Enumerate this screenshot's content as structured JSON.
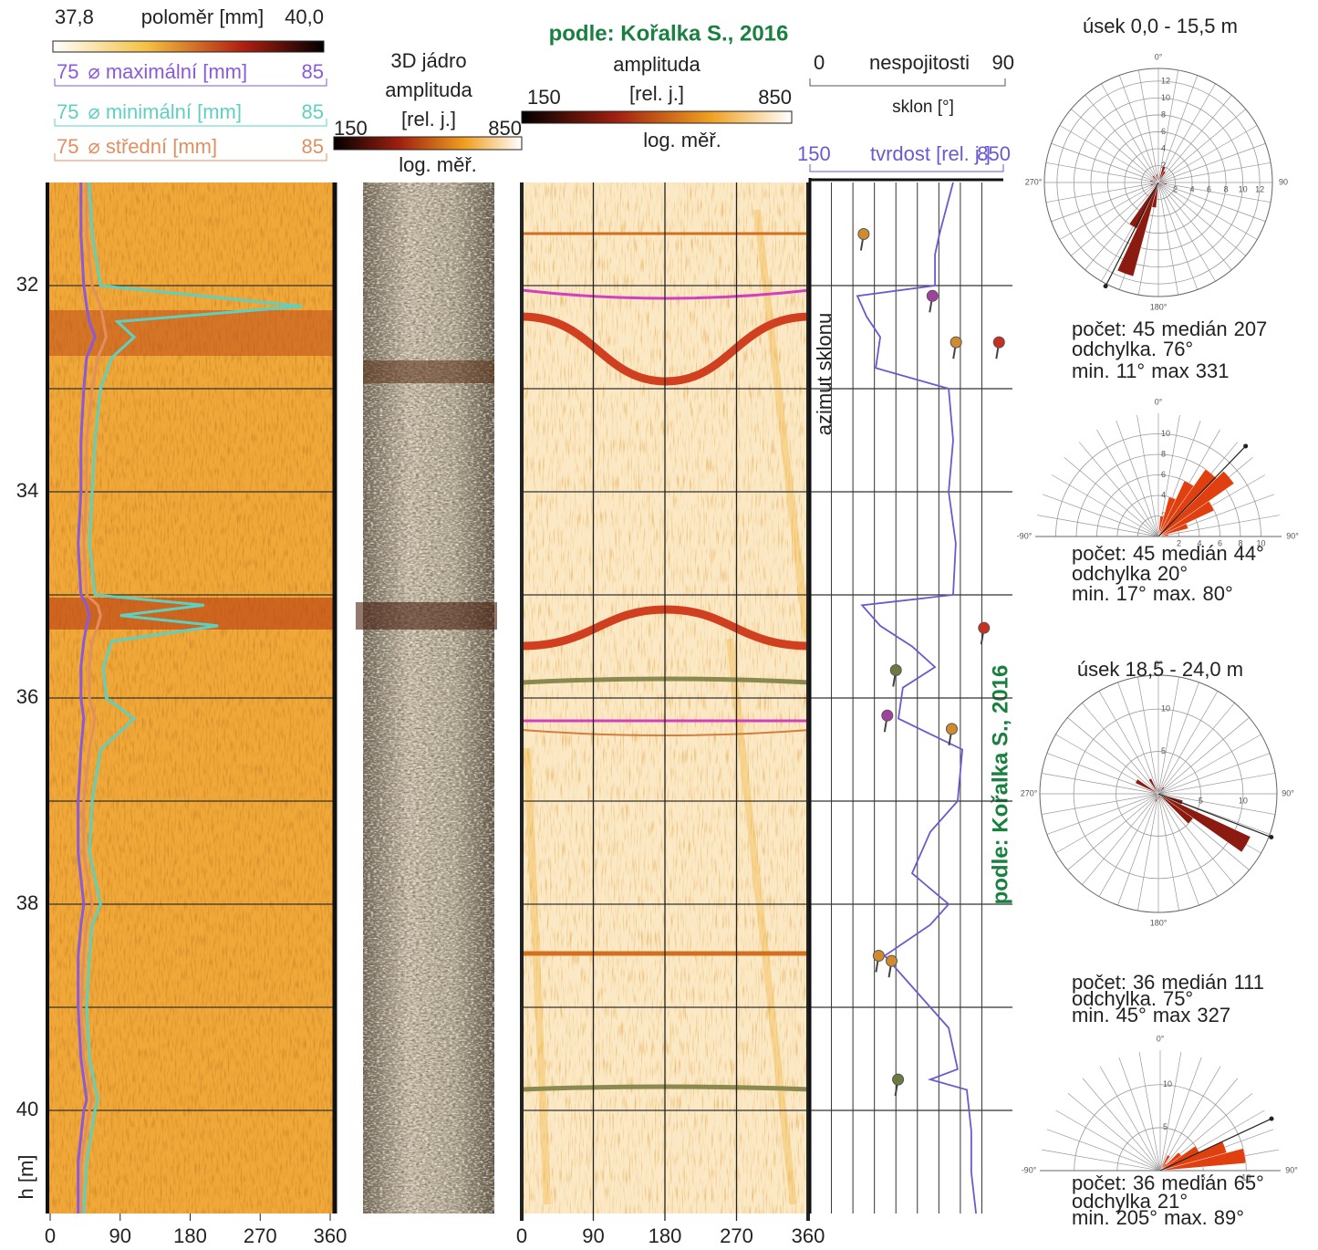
{
  "source": "podle: Kořalka S., 2016",
  "depth_axis": {
    "label": "h [m]",
    "lim": [
      31,
      41
    ],
    "ticks": [
      32,
      34,
      36,
      38,
      40
    ],
    "grid": [
      32,
      33,
      34,
      35,
      36,
      37,
      38,
      39,
      40
    ]
  },
  "radius_log": {
    "scale_min": {
      "value": 37.8,
      "label": "37,8"
    },
    "scale_title": "poloměr [mm]",
    "scale_max": {
      "value": 40.0,
      "label": "40,0"
    },
    "xlim": [
      0,
      360
    ],
    "xticks": [
      0,
      90,
      180,
      270,
      360
    ],
    "caliper_lim": [
      75,
      85
    ],
    "caliper_depths": [
      31.0,
      31.5,
      32.0,
      32.2,
      32.35,
      32.5,
      32.7,
      33.0,
      33.5,
      34.0,
      34.5,
      35.0,
      35.1,
      35.2,
      35.3,
      35.45,
      35.7,
      36.0,
      36.2,
      36.5,
      37.0,
      37.5,
      38.0,
      38.2,
      38.5,
      39.0,
      39.5,
      39.9,
      40.0,
      40.5,
      41.0
    ],
    "series": [
      {
        "name": "⌀ maximální [mm]",
        "color": "#8a5ad8",
        "values": [
          76.1,
          76.1,
          76.2,
          76.3,
          76.4,
          76.6,
          76.3,
          76.2,
          76.1,
          76.1,
          76.0,
          76.1,
          76.3,
          76.4,
          76.3,
          76.2,
          76.1,
          76.1,
          76.2,
          76.1,
          76.0,
          76.0,
          76.2,
          76.1,
          76.0,
          76.0,
          76.1,
          76.3,
          76.2,
          76.0,
          76.0
        ]
      },
      {
        "name": "⌀ minimální [mm]",
        "color": "#5fd0c0",
        "values": [
          76.4,
          76.5,
          76.8,
          84.0,
          77.4,
          78.0,
          77.2,
          76.8,
          76.6,
          76.5,
          76.4,
          76.6,
          80.5,
          77.5,
          81.0,
          77.2,
          76.9,
          77.0,
          78.0,
          76.8,
          76.5,
          76.4,
          76.8,
          76.5,
          76.4,
          76.3,
          76.4,
          76.7,
          76.6,
          76.3,
          76.2
        ]
      },
      {
        "name": "⌀ střední [mm]",
        "color": "#e09060",
        "values": [
          76.3,
          76.3,
          76.5,
          76.8,
          76.9,
          77.0,
          76.7,
          76.5,
          76.3,
          76.3,
          76.2,
          76.3,
          76.7,
          76.8,
          76.7,
          76.5,
          76.4,
          76.4,
          76.6,
          76.4,
          76.2,
          76.2,
          76.5,
          76.3,
          76.2,
          76.1,
          76.2,
          76.5,
          76.4,
          76.1,
          76.1
        ]
      }
    ]
  },
  "core_3d": {
    "title": "3D jádro",
    "subtitle": "amplituda",
    "unit": "[rel. j.]",
    "lim": [
      150,
      850
    ],
    "note": "log. měř."
  },
  "amplitude_log": {
    "title": "amplituda",
    "unit": "[rel. j.]",
    "lim": [
      150,
      850
    ],
    "note": "log. měř.",
    "xlim": [
      0,
      360
    ],
    "xticks": [
      0,
      90,
      180,
      270,
      360
    ]
  },
  "discontinuities": {
    "title": "nespojitosti",
    "unit": "sklon [°]",
    "azimuth_label": "azimut sklonu",
    "lim": [
      0,
      90
    ],
    "grid": [
      10,
      20,
      30,
      40,
      50,
      60,
      70,
      80
    ],
    "depths": [
      31.5,
      32.1,
      32.55,
      32.55,
      35.32,
      35.73,
      36.17,
      36.3,
      38.5,
      38.55,
      39.7
    ],
    "dips": [
      25,
      57,
      68,
      88,
      81,
      40,
      36,
      66,
      32,
      38,
      41
    ],
    "colors": [
      "#d08a30",
      "#a040a0",
      "#d08a30",
      "#c83020",
      "#c83020",
      "#6a7a40",
      "#a040a0",
      "#d08a30",
      "#d08a30",
      "#d08a30",
      "#6a7a40"
    ]
  },
  "hardness": {
    "title": "tvrdost [rel. j.]",
    "lim": [
      150,
      850
    ],
    "color": "#6a5ad0",
    "depths": [
      31.0,
      31.5,
      31.7,
      32.0,
      32.1,
      32.3,
      32.5,
      32.8,
      33.0,
      33.5,
      34.0,
      34.5,
      35.0,
      35.1,
      35.3,
      35.5,
      35.7,
      35.9,
      36.2,
      36.5,
      37.0,
      37.3,
      37.7,
      38.0,
      38.2,
      38.5,
      38.8,
      39.2,
      39.6,
      39.7,
      39.8,
      40.2,
      40.6,
      41.0
    ],
    "values": [
      694,
      642,
      625,
      625,
      330,
      365,
      417,
      400,
      677,
      694,
      677,
      704,
      694,
      348,
      417,
      538,
      625,
      503,
      486,
      729,
      711,
      607,
      538,
      677,
      607,
      434,
      538,
      677,
      711,
      607,
      746,
      763,
      763,
      781
    ]
  },
  "roses": [
    {
      "title": "úsek 0,0 - 15,5 m",
      "half": false,
      "color": "#8b1a10",
      "rlim": [
        0,
        13.5
      ],
      "rticks": [
        2,
        4,
        6,
        8,
        10,
        12
      ],
      "angle_labels": [
        {
          "value": 0,
          "label": "0°"
        },
        {
          "value": 90,
          "label": "90"
        },
        {
          "value": 180,
          "label": "180°"
        },
        {
          "value": 270,
          "label": "270°"
        }
      ],
      "angles": [
        200,
        210,
        190,
        20,
        30,
        100,
        250,
        280,
        320,
        350
      ],
      "counts": [
        11.5,
        6,
        3,
        2,
        1.5,
        1,
        1,
        1,
        1,
        1
      ],
      "stats": {
        "count_label": "počet:",
        "count": 45,
        "median_label": "medián",
        "median": 207,
        "dev_label": "odchylka.",
        "dev": {
          "value": 76,
          "label": "76°"
        },
        "min_label": "min.",
        "min": {
          "value": 11,
          "label": "11°"
        },
        "max_label": "max",
        "max": 331
      }
    },
    {
      "half": true,
      "color": "#e04010",
      "rlim": [
        0,
        12
      ],
      "rticks": [
        2,
        4,
        6,
        8,
        10
      ],
      "angle_labels": [
        {
          "value": -90,
          "label": "-90°"
        },
        {
          "value": 0,
          "label": "0°"
        },
        {
          "value": 90,
          "label": "90°"
        }
      ],
      "angles": [
        10,
        20,
        30,
        40,
        50,
        60,
        70,
        80
      ],
      "counts": [
        2,
        4,
        6,
        8,
        9,
        6,
        3,
        1
      ],
      "stats": {
        "count_label": "počet:",
        "count": 45,
        "median_label": "medián",
        "median": {
          "value": 44,
          "label": "44°"
        },
        "dev_label": "odchylka",
        "dev": {
          "value": 20,
          "label": "20°"
        },
        "min_label": "min.",
        "min": {
          "value": 17,
          "label": "17°"
        },
        "max_label": "max.",
        "max": {
          "value": 80,
          "label": "80°"
        }
      }
    },
    {
      "title": "úsek 18,5 -  24,0 m",
      "half": false,
      "color": "#8b1a10",
      "rlim": [
        0,
        14
      ],
      "rticks": [
        5,
        10
      ],
      "angle_labels": [
        {
          "value": 0,
          "label": "0°"
        },
        {
          "value": 90,
          "label": "90°"
        },
        {
          "value": 180,
          "label": "180°"
        },
        {
          "value": 270,
          "label": "270°"
        }
      ],
      "angles": [
        120,
        130,
        110,
        300,
        330,
        40,
        200
      ],
      "counts": [
        12,
        5,
        3,
        3,
        2,
        1,
        1
      ],
      "stats": {
        "count_label": "počet:",
        "count": 36,
        "median_label": "medián",
        "median": 111,
        "dev_label": "odchylka.",
        "dev": {
          "value": 75,
          "label": "75°"
        },
        "min_label": "min.",
        "min": {
          "value": 45,
          "label": "45°"
        },
        "max_label": "max",
        "max": 327
      }
    },
    {
      "half": true,
      "color": "#e04010",
      "rlim": [
        0,
        14
      ],
      "rticks": [
        5,
        10
      ],
      "angle_labels": [
        {
          "value": -90,
          "label": "-90°"
        },
        {
          "value": 0,
          "label": "0°"
        },
        {
          "value": 90,
          "label": "90°"
        }
      ],
      "angles": [
        30,
        40,
        50,
        60,
        70,
        80
      ],
      "counts": [
        2,
        1,
        3,
        5,
        8,
        10
      ],
      "stats": {
        "count_label": "počet:",
        "count": 36,
        "median_label": "medián",
        "median": {
          "value": 65,
          "label": "65°"
        },
        "dev_label": "odchylka",
        "dev": {
          "value": 21,
          "label": "21°"
        },
        "min_label": "min.",
        "min": {
          "value": 205,
          "label": "205°"
        },
        "max_label": "max.",
        "max": {
          "value": 89,
          "label": "89°"
        }
      }
    }
  ]
}
